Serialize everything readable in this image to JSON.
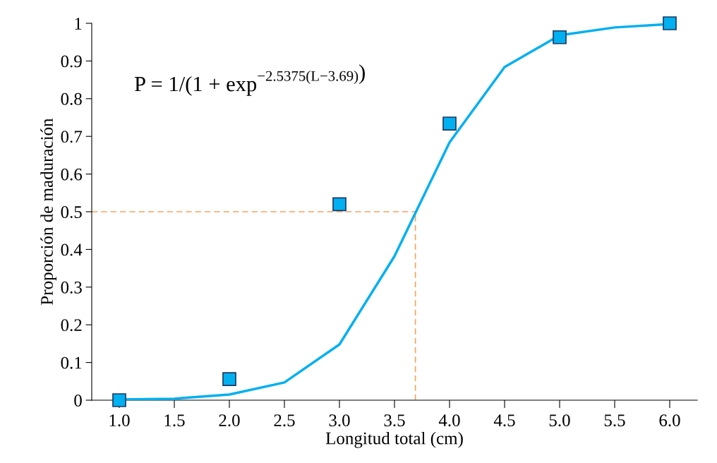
{
  "chart_data": {
    "type": "scatter",
    "xlabel": "Longitud total (cm)",
    "ylabel": "Proporción de maduración",
    "xlim": [
      0.75,
      6.25
    ],
    "xticks": [
      {
        "value": 1,
        "label": "1.0"
      },
      {
        "value": 1.5,
        "label": "1.5"
      },
      {
        "value": 2,
        "label": "2.0"
      },
      {
        "value": 2.5,
        "label": "2.5"
      },
      {
        "value": 3,
        "label": "3.0"
      },
      {
        "value": 3.5,
        "label": "3.5"
      },
      {
        "value": 4,
        "label": "4.0"
      },
      {
        "value": 4.5,
        "label": "4.5"
      },
      {
        "value": 5,
        "label": "5.0"
      },
      {
        "value": 5.5,
        "label": "5.5"
      },
      {
        "value": 6,
        "label": "6.0"
      }
    ],
    "ylim": [
      0,
      1
    ],
    "yticks": [
      0,
      0.1,
      0.2,
      0.3,
      0.4,
      0.5,
      0.6,
      0.7,
      0.8,
      0.9,
      1
    ],
    "grid": false,
    "legend": false,
    "series": [
      {
        "type": "line",
        "color": "#00b0f0",
        "marker": "none",
        "line_style": "solid",
        "x": [
          1,
          1.5,
          2,
          2.5,
          3,
          3.5,
          4,
          4.5,
          5,
          5.5,
          6
        ],
        "values": [
          0.002,
          0.004,
          0.015,
          0.047,
          0.148,
          0.382,
          0.684,
          0.884,
          0.968,
          0.989,
          0.998
        ]
      },
      {
        "color": "#00b0f0",
        "marker": "square",
        "x": [
          1,
          2,
          3,
          4,
          5,
          6
        ],
        "values": [
          0,
          0.056,
          0.52,
          0.734,
          0.963,
          1.0
        ]
      }
    ],
    "ref_lines": [
      {
        "axis": "y",
        "value": 0.5,
        "color": "#f4a460",
        "line_style": "dashed"
      },
      {
        "axis": "x",
        "value": 3.69,
        "color": "#f4a460",
        "line_style": "dashed"
      }
    ],
    "annotations": [
      "P = 1/(1 + exp$^{−2.5375(L−3.69)}$)"
    ]
  }
}
